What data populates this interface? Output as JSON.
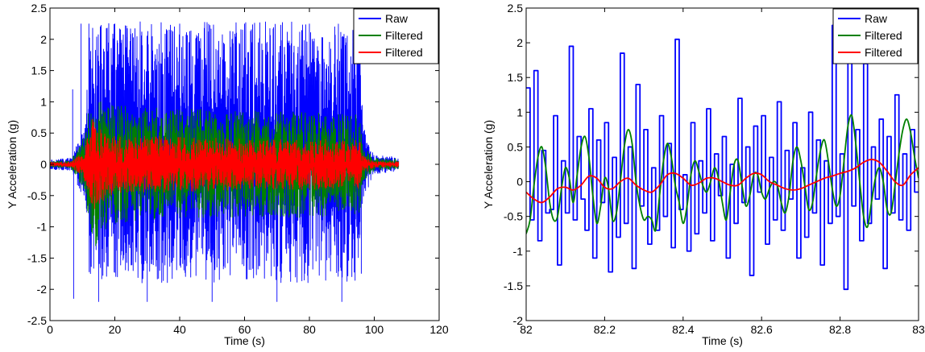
{
  "colors": {
    "raw": "#0000ff",
    "filtered_green": "#008000",
    "filtered_red": "#ff0000"
  },
  "chart_data": [
    {
      "type": "line",
      "xlabel": "Time (s)",
      "ylabel": "Y Acceleration (g)",
      "xlim": [
        0,
        120
      ],
      "ylim": [
        -2.5,
        2.5
      ],
      "xticks": [
        0,
        20,
        40,
        60,
        80,
        100,
        120
      ],
      "yticks": [
        -2.5,
        -2,
        -1.5,
        -1,
        -0.5,
        0,
        0.5,
        1,
        1.5,
        2,
        2.5
      ],
      "legend": "top-right",
      "grid": false,
      "series": [
        {
          "name": "Raw",
          "color": "#0000ff",
          "x": [
            0,
            6.5,
            7,
            7.3,
            9,
            9.6,
            10,
            11,
            12,
            15,
            20,
            30,
            40,
            50,
            60,
            70,
            80,
            90,
            95.5,
            96,
            97,
            100,
            105,
            107.5
          ],
          "y": [
            0,
            0.05,
            1.2,
            -2.15,
            0.3,
            2.25,
            0.15,
            -0.4,
            2.25,
            -2.2,
            2.25,
            -2.2,
            2.25,
            -2.2,
            2.25,
            -2.2,
            2.25,
            -2.2,
            2.25,
            -1.75,
            0.55,
            -0.1,
            0.08,
            0.05
          ],
          "envelope": {
            "x": [
              0,
              6.5,
              9,
              11,
              12,
              20,
              40,
              60,
              80,
              95.5,
              96.5,
              100,
              107.5
            ],
            "max": [
              0.08,
              0.1,
              0.4,
              0.6,
              2.28,
              2.28,
              2.28,
              2.28,
              2.28,
              2.28,
              0.6,
              0.15,
              0.12
            ],
            "min": [
              -0.08,
              -0.1,
              -0.4,
              -0.6,
              -1.9,
              -1.9,
              -1.9,
              -1.9,
              -1.9,
              -1.9,
              -0.6,
              -0.15,
              -0.12
            ]
          }
        },
        {
          "name": "Filtered",
          "color": "#008000",
          "envelope": {
            "x": [
              0,
              6.5,
              9,
              11,
              12,
              14,
              20,
              40,
              60,
              80,
              95.5,
              96.5,
              100,
              107.5
            ],
            "max": [
              0.05,
              0.06,
              0.3,
              0.5,
              0.9,
              1.15,
              0.95,
              0.9,
              0.85,
              0.85,
              0.8,
              0.3,
              0.1,
              0.08
            ],
            "min": [
              -0.05,
              -0.06,
              -0.3,
              -0.5,
              -1.0,
              -1.35,
              -0.95,
              -0.85,
              -0.85,
              -0.85,
              -0.8,
              -0.3,
              -0.1,
              -0.08
            ]
          }
        },
        {
          "name": "Filtered",
          "color": "#ff0000",
          "envelope": {
            "x": [
              0,
              6.5,
              9,
              11,
              12,
              13,
              20,
              40,
              60,
              80,
              95.5,
              96.5,
              100,
              107.5
            ],
            "max": [
              0.03,
              0.04,
              0.15,
              0.3,
              0.55,
              0.75,
              0.45,
              0.45,
              0.4,
              0.4,
              0.4,
              0.15,
              0.05,
              0.04
            ],
            "min": [
              -0.03,
              -0.04,
              -0.15,
              -0.3,
              -0.55,
              -0.75,
              -0.45,
              -0.45,
              -0.4,
              -0.4,
              -0.4,
              -0.15,
              -0.05,
              -0.04
            ]
          }
        }
      ]
    },
    {
      "type": "line",
      "xlabel": "Time (s)",
      "ylabel": "Y Acceleration (g)",
      "xlim": [
        82,
        83
      ],
      "ylim": [
        -2,
        2.5
      ],
      "xticks": [
        82,
        82.2,
        82.4,
        82.6,
        82.8,
        83
      ],
      "yticks": [
        -2,
        -1.5,
        -1,
        -0.5,
        0,
        0.5,
        1,
        1.5,
        2,
        2.5
      ],
      "legend": "top-right",
      "grid": false,
      "series": [
        {
          "name": "Raw",
          "color": "#0000ff",
          "step": true,
          "x": [
            82,
            82.01,
            82.02,
            82.03,
            82.04,
            82.05,
            82.06,
            82.07,
            82.08,
            82.09,
            82.1,
            82.11,
            82.12,
            82.13,
            82.14,
            82.15,
            82.16,
            82.17,
            82.18,
            82.19,
            82.2,
            82.21,
            82.22,
            82.23,
            82.24,
            82.25,
            82.26,
            82.27,
            82.28,
            82.29,
            82.3,
            82.31,
            82.32,
            82.33,
            82.34,
            82.35,
            82.36,
            82.37,
            82.38,
            82.39,
            82.4,
            82.41,
            82.42,
            82.43,
            82.44,
            82.45,
            82.46,
            82.47,
            82.48,
            82.49,
            82.5,
            82.51,
            82.52,
            82.53,
            82.54,
            82.55,
            82.56,
            82.57,
            82.58,
            82.59,
            82.6,
            82.61,
            82.62,
            82.63,
            82.64,
            82.65,
            82.66,
            82.67,
            82.68,
            82.69,
            82.7,
            82.71,
            82.72,
            82.73,
            82.74,
            82.75,
            82.76,
            82.77,
            82.78,
            82.79,
            82.8,
            82.81,
            82.82,
            82.83,
            82.84,
            82.85,
            82.86,
            82.87,
            82.88,
            82.89,
            82.9,
            82.91,
            82.92,
            82.93,
            82.94,
            82.95,
            82.96,
            82.97,
            82.98,
            82.99
          ],
          "y": [
            1.35,
            -0.55,
            1.6,
            -0.85,
            0.45,
            -0.45,
            -0.4,
            0.95,
            -1.2,
            0.3,
            -0.45,
            1.95,
            -0.55,
            0.65,
            -0.25,
            -0.7,
            1.05,
            -1.1,
            0.6,
            -0.3,
            0.85,
            -1.3,
            0.35,
            -0.8,
            1.85,
            -0.6,
            0.5,
            -1.25,
            1.4,
            -0.35,
            0.75,
            -0.9,
            0.2,
            -0.7,
            0.95,
            -0.5,
            0.55,
            -0.95,
            2.05,
            -0.4,
            0.1,
            -1.0,
            0.85,
            -0.75,
            0.3,
            -0.45,
            1.05,
            -0.85,
            0.4,
            -0.2,
            0.65,
            -1.1,
            0.25,
            -0.6,
            1.2,
            -0.3,
            0.5,
            -1.35,
            0.8,
            -0.15,
            0.95,
            -0.9,
            0.35,
            -0.55,
            1.15,
            -0.7,
            0.45,
            -0.25,
            0.85,
            -1.1,
            0.2,
            -0.8,
            1.0,
            -0.45,
            0.6,
            -1.2,
            0.3,
            -0.6,
            2.25,
            -0.5,
            0.4,
            -1.55,
            1.95,
            -0.35,
            0.75,
            -0.85,
            1.7,
            -0.6,
            0.5,
            -0.25,
            0.9,
            -1.25,
            0.65,
            -0.45,
            1.25,
            -0.55,
            0.4,
            -0.7,
            0.75,
            -0.15
          ]
        },
        {
          "name": "Filtered",
          "color": "#008000",
          "x": [
            82,
            82.01,
            82.02,
            82.03,
            82.04,
            82.05,
            82.06,
            82.07,
            82.08,
            82.09,
            82.1,
            82.11,
            82.12,
            82.13,
            82.14,
            82.15,
            82.16,
            82.17,
            82.18,
            82.19,
            82.2,
            82.21,
            82.22,
            82.23,
            82.24,
            82.25,
            82.26,
            82.27,
            82.28,
            82.29,
            82.3,
            82.31,
            82.32,
            82.33,
            82.34,
            82.35,
            82.36,
            82.37,
            82.38,
            82.39,
            82.4,
            82.41,
            82.42,
            82.43,
            82.44,
            82.45,
            82.46,
            82.47,
            82.48,
            82.49,
            82.5,
            82.51,
            82.52,
            82.53,
            82.54,
            82.55,
            82.56,
            82.57,
            82.58,
            82.59,
            82.6,
            82.61,
            82.62,
            82.63,
            82.64,
            82.65,
            82.66,
            82.67,
            82.68,
            82.69,
            82.7,
            82.71,
            82.72,
            82.73,
            82.74,
            82.75,
            82.76,
            82.77,
            82.78,
            82.79,
            82.8,
            82.81,
            82.82,
            82.83,
            82.84,
            82.85,
            82.86,
            82.87,
            82.88,
            82.89,
            82.9,
            82.91,
            82.92,
            82.93,
            82.94,
            82.95,
            82.96,
            82.97,
            82.98,
            82.99,
            83
          ],
          "y": [
            -0.75,
            -0.55,
            -0.05,
            0.35,
            0.5,
            0.2,
            -0.3,
            -0.55,
            -0.5,
            -0.1,
            0.2,
            0.05,
            -0.3,
            0.1,
            0.5,
            0.65,
            0.35,
            -0.2,
            -0.6,
            -0.35,
            0.05,
            -0.1,
            -0.55,
            -0.45,
            0.0,
            0.5,
            0.75,
            0.55,
            0.0,
            -0.35,
            -0.55,
            -0.5,
            -0.55,
            -0.7,
            -0.2,
            0.3,
            0.55,
            0.35,
            -0.05,
            -0.3,
            -0.6,
            -0.35,
            0.1,
            0.3,
            0.15,
            -0.05,
            -0.15,
            0.0,
            0.2,
            0.05,
            -0.3,
            -0.55,
            -0.15,
            0.25,
            0.3,
            -0.05,
            -0.35,
            -0.2,
            0.1,
            0.1,
            -0.15,
            -0.25,
            -0.1,
            0.0,
            -0.05,
            -0.3,
            -0.45,
            -0.2,
            0.3,
            0.5,
            0.3,
            -0.05,
            -0.4,
            -0.3,
            0.1,
            0.45,
            0.6,
            0.3,
            -0.1,
            -0.35,
            -0.2,
            0.3,
            0.8,
            0.95,
            0.55,
            0.0,
            -0.5,
            -0.65,
            -0.3,
            0.05,
            0.2,
            0.0,
            -0.4,
            -0.45,
            -0.05,
            0.4,
            0.75,
            0.9,
            0.7,
            0.35,
            0.05
          ]
        },
        {
          "name": "Filtered",
          "color": "#ff0000",
          "x": [
            82,
            82.02,
            82.04,
            82.06,
            82.08,
            82.1,
            82.12,
            82.14,
            82.16,
            82.18,
            82.2,
            82.22,
            82.24,
            82.26,
            82.28,
            82.3,
            82.32,
            82.34,
            82.36,
            82.38,
            82.4,
            82.42,
            82.44,
            82.46,
            82.48,
            82.5,
            82.52,
            82.54,
            82.56,
            82.58,
            82.6,
            82.62,
            82.64,
            82.66,
            82.68,
            82.7,
            82.72,
            82.74,
            82.76,
            82.78,
            82.8,
            82.82,
            82.84,
            82.86,
            82.88,
            82.9,
            82.92,
            82.94,
            82.96,
            82.98,
            83
          ],
          "y": [
            -0.15,
            -0.25,
            -0.3,
            -0.22,
            -0.1,
            -0.08,
            -0.12,
            -0.05,
            0.08,
            0.05,
            -0.08,
            -0.1,
            0.0,
            0.05,
            -0.05,
            -0.12,
            -0.15,
            -0.05,
            0.1,
            0.12,
            0.05,
            -0.05,
            -0.02,
            0.05,
            0.05,
            0.0,
            -0.05,
            -0.05,
            0.05,
            0.12,
            0.1,
            0.0,
            -0.05,
            -0.1,
            -0.12,
            -0.1,
            -0.05,
            0.0,
            0.05,
            0.08,
            0.12,
            0.15,
            0.2,
            0.28,
            0.32,
            0.28,
            0.15,
            0.0,
            -0.05,
            0.1,
            0.2
          ]
        }
      ]
    }
  ]
}
